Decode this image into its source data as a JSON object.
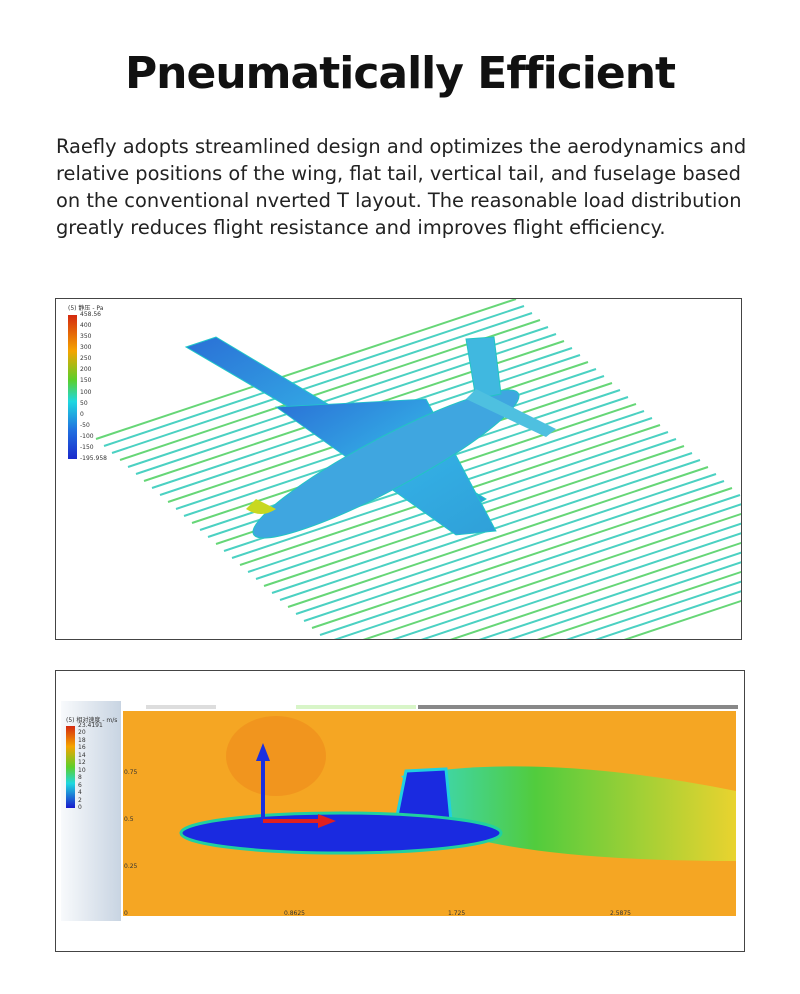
{
  "title": "Pneumatically Efficient",
  "description": "Raefly adopts streamlined design and optimizes the aerodynamics and relative positions of the wing, flat tail, vertical tail, and fuselage based on the conventional  nverted T layout. The reasonable load distribution greatly reduces flight resistance and improves flight efficiency.",
  "pressure_figure": {
    "legend_title": "(5) 静压 - Pa",
    "legend_ticks": [
      "458.56",
      "400",
      "350",
      "300",
      "250",
      "200",
      "150",
      "100",
      "50",
      "0",
      "-50",
      "-100",
      "-150",
      "-195.958"
    ]
  },
  "velocity_figure": {
    "legend_title": "(5) 相对速度 - m/s",
    "legend_ticks": [
      "23.4191",
      "20",
      "18",
      "16",
      "14",
      "12",
      "10",
      "8",
      "6",
      "4",
      "2",
      "0"
    ],
    "y_ticks": [
      "0.75",
      "0.5",
      "0.25",
      "0"
    ],
    "x_ticks": [
      "0.8625",
      "1.725",
      "2.5875"
    ]
  }
}
